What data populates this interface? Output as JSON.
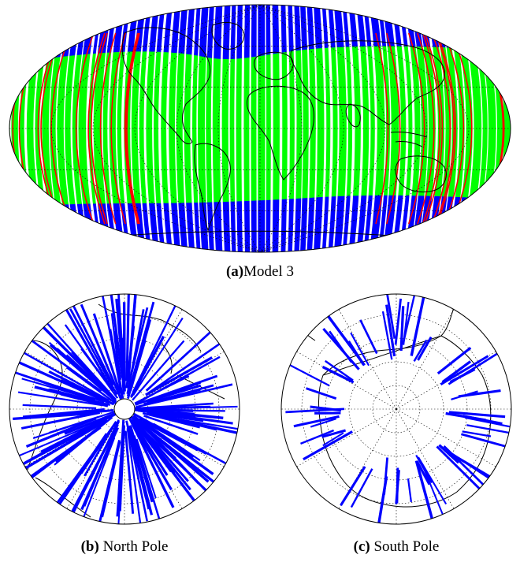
{
  "colors": {
    "coverage_green": "#00ff00",
    "coverage_red": "#ff0000",
    "coverage_blue": "#0000ff",
    "coastline": "#000000",
    "graticule": "#000000"
  },
  "panels": [
    {
      "id": "a",
      "tag": "(a)",
      "label": "Model 3",
      "projection": "Mollweide (whole globe)"
    },
    {
      "id": "b",
      "tag": "(b)",
      "label": " North Pole",
      "projection": "polar azimuthal"
    },
    {
      "id": "c",
      "tag": "(c)",
      "label": " South Pole",
      "projection": "polar azimuthal"
    }
  ]
}
